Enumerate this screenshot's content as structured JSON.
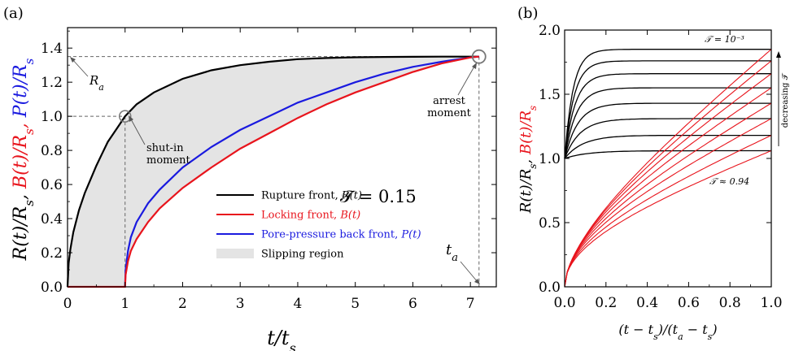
{
  "chart_data": [
    {
      "type": "line",
      "panel_label": "(a)",
      "xlabel": "t/t_s",
      "ylabel_parts": [
        {
          "text": "R(t)/R_s,",
          "color": "#000000"
        },
        {
          "text": "B(t)/R_s,",
          "color": "#e8141c"
        },
        {
          "text": "P(t)/R_s",
          "color": "#1a1adf"
        }
      ],
      "xlim": [
        0,
        7.45
      ],
      "ylim": [
        0,
        1.52
      ],
      "xticks": [
        0,
        1,
        2,
        3,
        4,
        5,
        6,
        7
      ],
      "yticks": [
        0.0,
        0.2,
        0.4,
        0.6,
        0.8,
        1.0,
        1.2,
        1.4
      ],
      "ytick_labels": [
        "0.0",
        "0.2",
        "0.4",
        "0.6",
        "0.8",
        "1.0",
        "1.2",
        "1.4"
      ],
      "param_label": "𝒯 = 0.15",
      "t_a": 7.15,
      "R_a": 1.35,
      "annotations": {
        "R_a": "R_a",
        "t_a": "t_a",
        "shut_in_line1": "shut-in",
        "shut_in_line2": "moment",
        "arrest_line1": "arrest",
        "arrest_line2": "moment"
      },
      "legend": [
        {
          "label": "Rupture front, ",
          "sym": "R(t)",
          "color": "#000000",
          "text_color": "#000000",
          "kind": "line"
        },
        {
          "label": "Locking front, ",
          "sym": "B(t)",
          "color": "#e8141c",
          "text_color": "#e8141c",
          "kind": "line"
        },
        {
          "label": "Pore-pressure back front, ",
          "sym": "P(t)",
          "color": "#1a1adf",
          "text_color": "#1a1adf",
          "kind": "line"
        },
        {
          "label": "Slipping region",
          "sym": "",
          "color": "#e4e4e4",
          "text_color": "#000000",
          "kind": "patch"
        }
      ],
      "series": [
        {
          "name": "Rupture front, R(t)",
          "color": "#000000",
          "x": [
            0,
            0.02,
            0.05,
            0.1,
            0.2,
            0.3,
            0.4,
            0.5,
            0.6,
            0.7,
            0.8,
            0.9,
            1.0,
            1.2,
            1.5,
            2.0,
            2.5,
            3.0,
            3.5,
            4.0,
            4.5,
            5.0,
            5.5,
            6.0,
            6.5,
            7.0,
            7.15
          ],
          "y": [
            0,
            0.14,
            0.22,
            0.32,
            0.45,
            0.55,
            0.63,
            0.71,
            0.78,
            0.85,
            0.9,
            0.95,
            1.0,
            1.07,
            1.14,
            1.22,
            1.27,
            1.3,
            1.32,
            1.335,
            1.342,
            1.346,
            1.348,
            1.349,
            1.35,
            1.35,
            1.35
          ]
        },
        {
          "name": "Pore-pressure back front, P(t)",
          "color": "#1a1adf",
          "x": [
            1.0,
            1.01,
            1.05,
            1.1,
            1.2,
            1.4,
            1.6,
            2.0,
            2.5,
            3.0,
            3.5,
            4.0,
            4.5,
            5.0,
            5.5,
            6.0,
            6.5,
            7.0,
            7.15
          ],
          "y": [
            0,
            0.1,
            0.21,
            0.29,
            0.38,
            0.49,
            0.57,
            0.7,
            0.82,
            0.92,
            1.0,
            1.08,
            1.14,
            1.2,
            1.25,
            1.29,
            1.32,
            1.345,
            1.35
          ]
        },
        {
          "name": "Locking front, B(t)",
          "color": "#e8141c",
          "x": [
            0,
            1.0,
            1.01,
            1.05,
            1.1,
            1.2,
            1.4,
            1.6,
            2.0,
            2.5,
            3.0,
            3.5,
            4.0,
            4.5,
            5.0,
            5.5,
            6.0,
            6.5,
            7.0,
            7.15
          ],
          "y": [
            0,
            0,
            0.07,
            0.15,
            0.21,
            0.28,
            0.38,
            0.46,
            0.58,
            0.7,
            0.81,
            0.9,
            0.99,
            1.07,
            1.14,
            1.2,
            1.26,
            1.31,
            1.345,
            1.35
          ]
        }
      ]
    },
    {
      "type": "line",
      "panel_label": "(b)",
      "xlabel": "(t − t_s)/(t_a − t_s)",
      "ylabel_parts": [
        {
          "text": "R(t)/R_s,",
          "color": "#000000"
        },
        {
          "text": "B(t)/R_s",
          "color": "#e8141c"
        }
      ],
      "xlim": [
        0,
        1
      ],
      "ylim": [
        0,
        2
      ],
      "xticks": [
        0.0,
        0.2,
        0.4,
        0.6,
        0.8,
        1.0
      ],
      "xtick_labels": [
        "0.0",
        "0.2",
        "0.4",
        "0.6",
        "0.8",
        "1.0"
      ],
      "yticks": [
        0.0,
        0.5,
        1.0,
        1.5,
        2.0
      ],
      "ytick_labels": [
        "0.0",
        "0.5",
        "1.0",
        "1.5",
        "2.0"
      ],
      "top_label": "𝒯 = 10⁻³",
      "bottom_label": "𝒯 ≈ 0.94",
      "arrow_label": "decreasing 𝒯",
      "final_values": [
        1.06,
        1.18,
        1.31,
        1.43,
        1.55,
        1.66,
        1.76,
        1.85
      ]
    }
  ]
}
